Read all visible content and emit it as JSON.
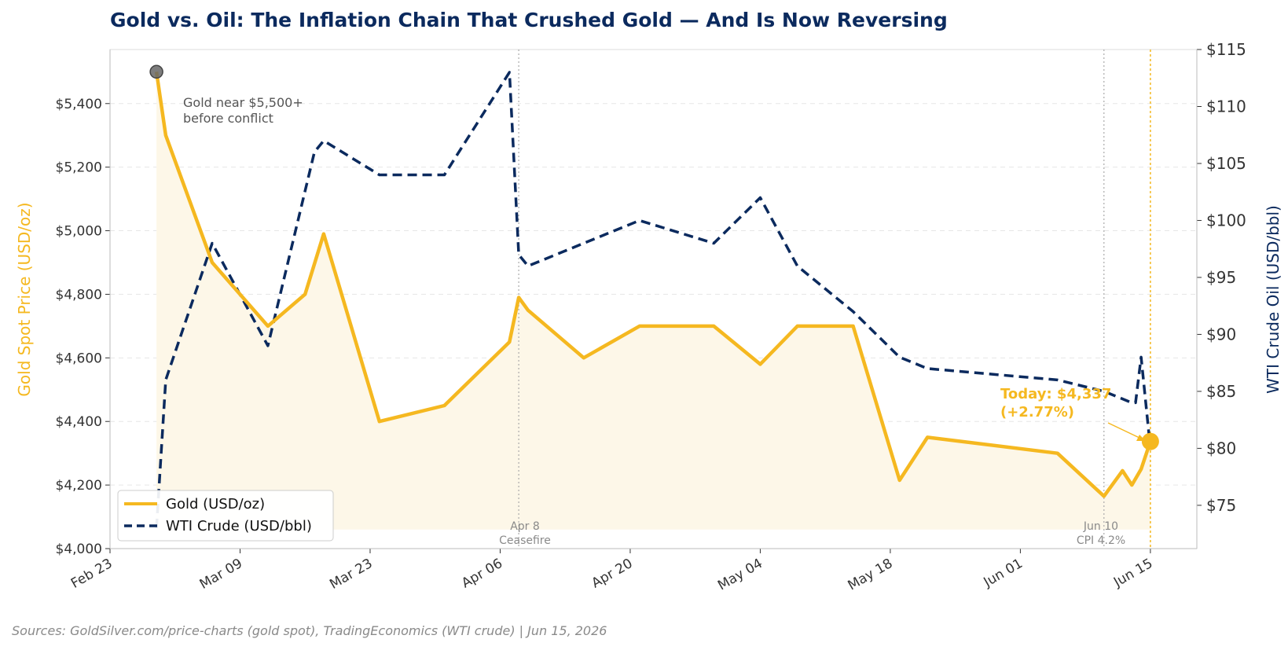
{
  "colors": {
    "gold": "#F5B820",
    "oil": "#0B2A5E",
    "title": "#0B2A5E",
    "grid": "#E6E6E6",
    "marker_start": "#666666",
    "fill": "#FDF7E8"
  },
  "chart_data": {
    "type": "line",
    "title": "Gold vs. Oil: The Inflation Chain That Crushed Gold — And Is Now Reversing",
    "y_left_label": "Gold Spot Price (USD/oz)",
    "y_right_label": "WTI Crude Oil (USD/bbl)",
    "x_ticks": [
      "Feb 23",
      "Mar 09",
      "Mar 23",
      "Apr 06",
      "Apr 20",
      "May 04",
      "May 18",
      "Jun 01",
      "Jun 15"
    ],
    "y_left_ticks": [
      "$4,000",
      "$4,200",
      "$4,400",
      "$4,600",
      "$4,800",
      "$5,000",
      "$5,200",
      "$5,400"
    ],
    "y_right_ticks": [
      "$75",
      "$80",
      "$85",
      "$90",
      "$95",
      "$100",
      "$105",
      "$110",
      "$115"
    ],
    "ylim_left": [
      4000,
      5570
    ],
    "ylim_right": [
      71.2,
      115
    ],
    "xlim": [
      "2026-02-23",
      "2026-06-20"
    ],
    "grid": "horizontal dashed",
    "legend_position": "lower-left",
    "series": [
      {
        "name": "Gold (USD/oz)",
        "axis": "left",
        "style": "solid",
        "points": [
          [
            "2026-02-28",
            5500
          ],
          [
            "2026-03-01",
            5300
          ],
          [
            "2026-03-06",
            4900
          ],
          [
            "2026-03-12",
            4700
          ],
          [
            "2026-03-16",
            4800
          ],
          [
            "2026-03-18",
            4990
          ],
          [
            "2026-03-24",
            4400
          ],
          [
            "2026-03-31",
            4450
          ],
          [
            "2026-04-07",
            4650
          ],
          [
            "2026-04-08",
            4790
          ],
          [
            "2026-04-09",
            4750
          ],
          [
            "2026-04-15",
            4600
          ],
          [
            "2026-04-21",
            4700
          ],
          [
            "2026-04-29",
            4700
          ],
          [
            "2026-05-04",
            4580
          ],
          [
            "2026-05-08",
            4700
          ],
          [
            "2026-05-14",
            4700
          ],
          [
            "2026-05-19",
            4215
          ],
          [
            "2026-05-22",
            4350
          ],
          [
            "2026-06-05",
            4300
          ],
          [
            "2026-06-10",
            4165
          ],
          [
            "2026-06-12",
            4245
          ],
          [
            "2026-06-13",
            4200
          ],
          [
            "2026-06-14",
            4250
          ],
          [
            "2026-06-15",
            4337
          ]
        ]
      },
      {
        "name": "WTI Crude (USD/bbl)",
        "axis": "right",
        "style": "dashed",
        "points": [
          [
            "2026-02-28",
            73
          ],
          [
            "2026-03-01",
            86
          ],
          [
            "2026-03-06",
            98
          ],
          [
            "2026-03-12",
            89
          ],
          [
            "2026-03-17",
            106
          ],
          [
            "2026-03-18",
            107
          ],
          [
            "2026-03-24",
            104
          ],
          [
            "2026-03-31",
            104
          ],
          [
            "2026-04-07",
            113
          ],
          [
            "2026-04-08",
            97
          ],
          [
            "2026-04-09",
            96
          ],
          [
            "2026-04-15",
            98
          ],
          [
            "2026-04-21",
            100
          ],
          [
            "2026-04-29",
            98
          ],
          [
            "2026-05-04",
            102
          ],
          [
            "2026-05-08",
            96
          ],
          [
            "2026-05-14",
            92
          ],
          [
            "2026-05-19",
            88
          ],
          [
            "2026-05-22",
            87
          ],
          [
            "2026-06-05",
            86
          ],
          [
            "2026-06-10",
            85
          ],
          [
            "2026-06-13",
            84
          ],
          [
            "2026-06-13.4",
            84
          ],
          [
            "2026-06-14",
            88
          ],
          [
            "2026-06-15",
            80
          ]
        ]
      }
    ],
    "annotations": {
      "start_note": [
        "Gold near $5,500+",
        "before conflict"
      ],
      "events": [
        {
          "date": "2026-04-08",
          "lines": [
            "Apr 8",
            "Ceasefire"
          ]
        },
        {
          "date": "2026-06-10",
          "lines": [
            "Jun 10",
            "CPI 4.2%"
          ]
        }
      ],
      "today": [
        "Today: $4,337",
        "(+2.77%)"
      ]
    }
  },
  "footer": {
    "source": "Sources: GoldSilver.com/price-charts (gold spot), TradingEconomics (WTI crude) | Jun 15, 2026"
  }
}
